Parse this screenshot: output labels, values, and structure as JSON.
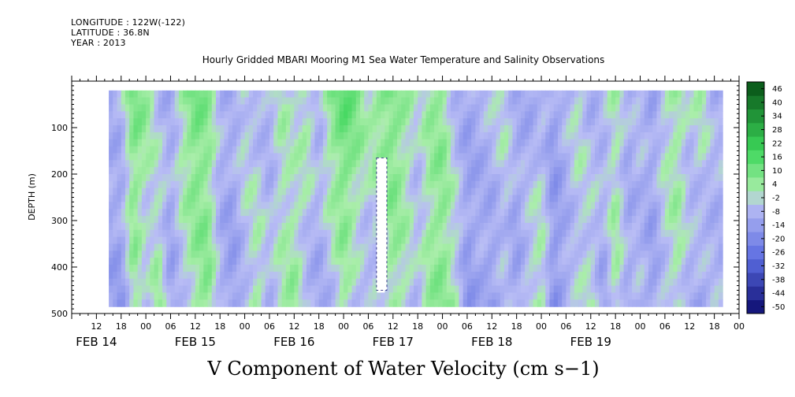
{
  "header": {
    "longitude": "LONGITUDE : 122W(-122)",
    "latitude": "LATITUDE : 36.8N",
    "year": "YEAR : 2013"
  },
  "chart_data": {
    "type": "heatmap",
    "title": "Hourly Gridded MBARI Mooring M1 Sea Water Temperature and Salinity Observations",
    "variable_label": "V Component of Water Velocity (cm s−1)",
    "ylabel": "DEPTH (m)",
    "ylim": [
      500,
      0
    ],
    "yticks": [
      100,
      200,
      300,
      400,
      500
    ],
    "data_depth_range": [
      20,
      485
    ],
    "time_range_hours": [
      -12,
      150
    ],
    "data_time_range_hours": [
      -3,
      146
    ],
    "gap": {
      "start_hour": 62,
      "end_hour": 64.5,
      "depth_from": 165,
      "depth_to": 450
    },
    "hour_tick_labels": [
      "12",
      "18",
      "00",
      "06",
      "12",
      "18",
      "00",
      "06",
      "12",
      "18",
      "00",
      "06",
      "12",
      "18",
      "00",
      "06",
      "12",
      "18",
      "00",
      "06",
      "12",
      "18",
      "00",
      "06",
      "12",
      "18",
      "00"
    ],
    "dates": [
      "FEB 14",
      "FEB 15",
      "FEB 16",
      "FEB 17",
      "FEB 18",
      "FEB 19"
    ],
    "colorbar": {
      "levels": [
        -50,
        -44,
        -38,
        -32,
        -26,
        -20,
        -14,
        -8,
        -2,
        4,
        10,
        16,
        22,
        28,
        34,
        40,
        46
      ],
      "label_values": [
        "46",
        "40",
        "34",
        "28",
        "22",
        "16",
        "10",
        "4",
        "-2",
        "-8",
        "-14",
        "-20",
        "-26",
        "-32",
        "-38",
        "-44",
        "-50"
      ],
      "range": [
        -50,
        50
      ]
    },
    "colors": {
      "strong_negative": "#0b0b6e",
      "negative": "#5a6be0",
      "weak_negative": "#b9bdf5",
      "weak_positive": "#aaeeaa",
      "positive": "#3cd65a",
      "strong_positive": "#0a5a1a"
    },
    "series_profile": [
      {
        "hour": -3,
        "surface": -6,
        "deep": -9
      },
      {
        "hour": 0,
        "surface": -4,
        "deep": -12
      },
      {
        "hour": 3,
        "surface": 12,
        "deep": 6
      },
      {
        "hour": 6,
        "surface": 8,
        "deep": -6
      },
      {
        "hour": 9,
        "surface": -4,
        "deep": 8
      },
      {
        "hour": 12,
        "surface": -6,
        "deep": -10
      },
      {
        "hour": 15,
        "surface": 6,
        "deep": -2
      },
      {
        "hour": 18,
        "surface": 14,
        "deep": 4
      },
      {
        "hour": 21,
        "surface": 8,
        "deep": 10
      },
      {
        "hour": 24,
        "surface": -5,
        "deep": -6
      },
      {
        "hour": 27,
        "surface": -6,
        "deep": -12
      },
      {
        "hour": 30,
        "surface": 2,
        "deep": -4
      },
      {
        "hour": 33,
        "surface": -4,
        "deep": 6
      },
      {
        "hour": 36,
        "surface": -6,
        "deep": -4
      },
      {
        "hour": 39,
        "surface": 4,
        "deep": 2
      },
      {
        "hour": 42,
        "surface": -2,
        "deep": 8
      },
      {
        "hour": 45,
        "surface": 6,
        "deep": -6
      },
      {
        "hour": 48,
        "surface": -4,
        "deep": -8
      },
      {
        "hour": 51,
        "surface": 10,
        "deep": -4
      },
      {
        "hour": 54,
        "surface": 16,
        "deep": 4
      },
      {
        "hour": 57,
        "surface": 12,
        "deep": -4
      },
      {
        "hour": 60,
        "surface": 4,
        "deep": -6
      },
      {
        "hour": 63,
        "surface": 10,
        "deep": -2
      },
      {
        "hour": 66,
        "surface": 12,
        "deep": 6
      },
      {
        "hour": 69,
        "surface": 6,
        "deep": 2
      },
      {
        "hour": 72,
        "surface": -2,
        "deep": -4
      },
      {
        "hour": 75,
        "surface": 6,
        "deep": 6
      },
      {
        "hour": 78,
        "surface": 8,
        "deep": 10
      },
      {
        "hour": 81,
        "surface": -4,
        "deep": 4
      },
      {
        "hour": 84,
        "surface": -8,
        "deep": -12
      },
      {
        "hour": 87,
        "surface": -6,
        "deep": -8
      },
      {
        "hour": 90,
        "surface": -2,
        "deep": -12
      },
      {
        "hour": 93,
        "surface": 2,
        "deep": -4
      },
      {
        "hour": 96,
        "surface": -6,
        "deep": -10
      },
      {
        "hour": 99,
        "surface": -8,
        "deep": 2
      },
      {
        "hour": 102,
        "surface": -4,
        "deep": 6
      },
      {
        "hour": 105,
        "surface": -10,
        "deep": -14
      },
      {
        "hour": 108,
        "surface": -4,
        "deep": -8
      },
      {
        "hour": 111,
        "surface": 2,
        "deep": -2
      },
      {
        "hour": 114,
        "surface": -6,
        "deep": 4
      },
      {
        "hour": 117,
        "surface": -2,
        "deep": -10
      },
      {
        "hour": 120,
        "surface": 4,
        "deep": 6
      },
      {
        "hour": 123,
        "surface": -6,
        "deep": -8
      },
      {
        "hour": 126,
        "surface": -4,
        "deep": -4
      },
      {
        "hour": 129,
        "surface": -8,
        "deep": -10
      },
      {
        "hour": 132,
        "surface": 2,
        "deep": -2
      },
      {
        "hour": 135,
        "surface": 6,
        "deep": 4
      },
      {
        "hour": 138,
        "surface": -2,
        "deep": -6
      },
      {
        "hour": 141,
        "surface": 4,
        "deep": -8
      },
      {
        "hour": 144,
        "surface": -6,
        "deep": -4
      },
      {
        "hour": 146,
        "surface": -4,
        "deep": -6
      }
    ]
  }
}
